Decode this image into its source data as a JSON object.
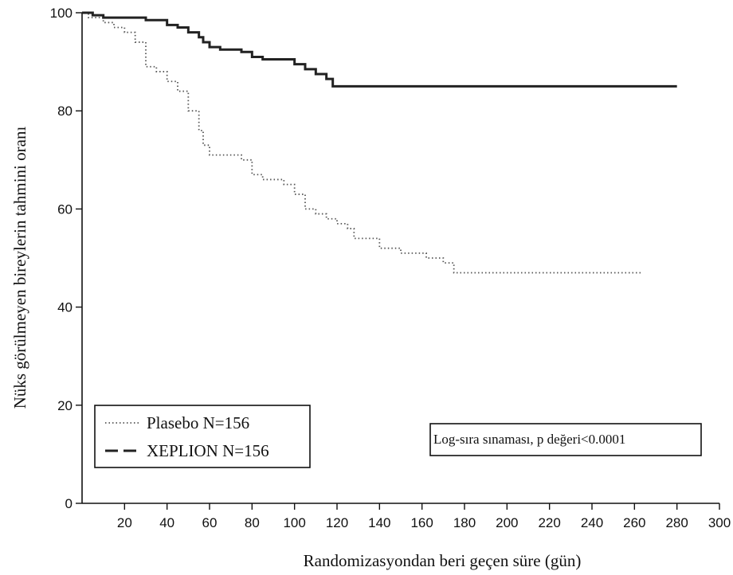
{
  "chart_data": {
    "type": "line",
    "xlabel": "Randomizasyondan beri geçen süre (gün)",
    "ylabel": "Nüks görülmeyen bireylerin tahmini oranı",
    "xlim": [
      0,
      300
    ],
    "ylim": [
      0,
      100
    ],
    "xticks": [
      20,
      40,
      60,
      80,
      100,
      120,
      140,
      160,
      180,
      200,
      220,
      240,
      260,
      280,
      300
    ],
    "yticks": [
      0,
      20,
      40,
      60,
      80,
      100
    ],
    "grid": false,
    "legend_position": "bottom-left",
    "series": [
      {
        "name": "Plasebo N=156",
        "style": "dotted",
        "color": "#555555",
        "x": [
          0,
          3,
          10,
          15,
          20,
          25,
          30,
          35,
          40,
          45,
          50,
          55,
          57,
          60,
          65,
          75,
          80,
          85,
          95,
          100,
          105,
          110,
          115,
          120,
          125,
          128,
          140,
          150,
          162,
          170,
          175,
          200,
          263
        ],
        "y": [
          100,
          99,
          98,
          97,
          96,
          94,
          89,
          88,
          86,
          84,
          80,
          76,
          73,
          71,
          71,
          70,
          67,
          66,
          65,
          63,
          60,
          59,
          58,
          57,
          56,
          54,
          52,
          51,
          50,
          49,
          47,
          47,
          47
        ]
      },
      {
        "name": "XEPLION N=156",
        "style": "dashed",
        "color": "#222222",
        "x": [
          0,
          5,
          10,
          30,
          40,
          45,
          50,
          55,
          57,
          60,
          65,
          75,
          80,
          85,
          100,
          105,
          110,
          115,
          118,
          120,
          280
        ],
        "y": [
          100,
          99.5,
          99,
          98.5,
          97.5,
          97,
          96,
          95,
          94,
          93,
          92.5,
          92,
          91,
          90.5,
          89.5,
          88.5,
          87.5,
          86.5,
          85,
          85,
          85
        ]
      }
    ],
    "annotations": [
      "Log-sıra sınaması, p değeri<0.0001"
    ]
  }
}
